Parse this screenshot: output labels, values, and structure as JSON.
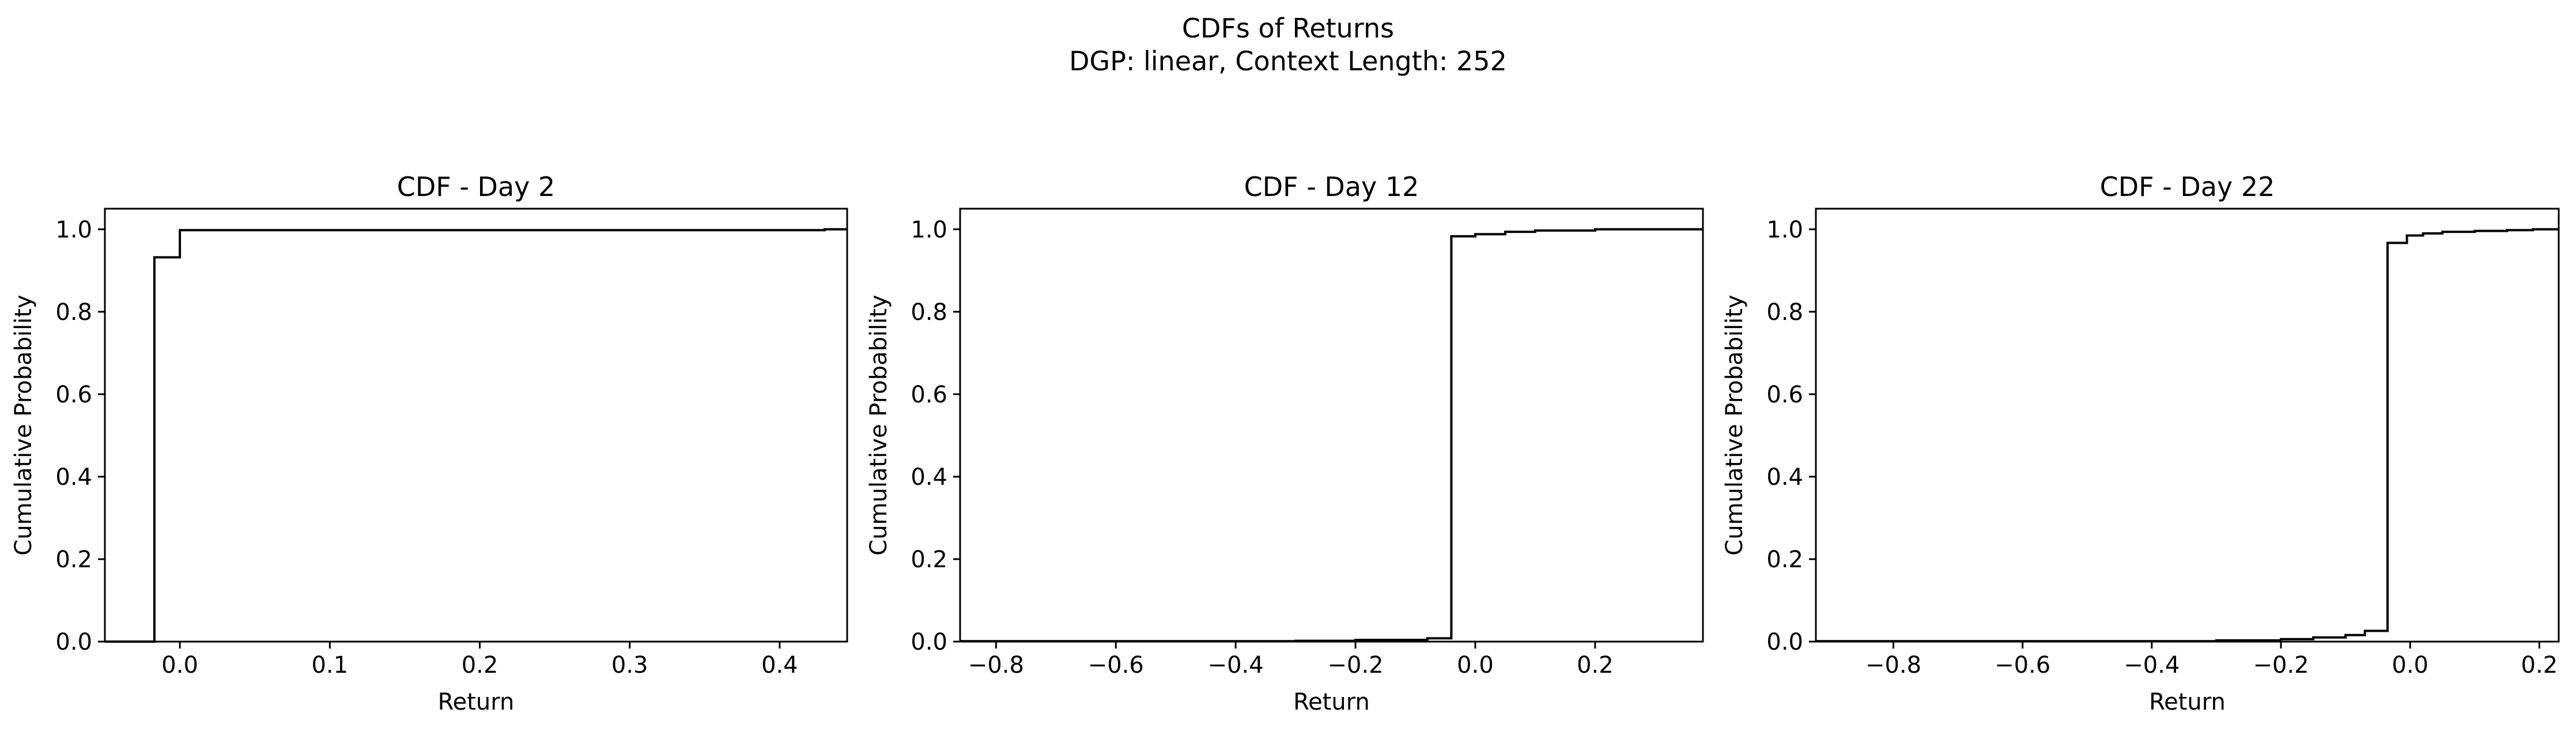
{
  "figure": {
    "title_line1": "CDFs of Returns",
    "title_line2": "DGP: linear, Context Length: 252"
  },
  "chart_data": [
    {
      "type": "line",
      "step": "post",
      "title": "CDF - Day 2",
      "xlabel": "Return",
      "ylabel": "Cumulative Probability",
      "xlim": [
        -0.05,
        0.445
      ],
      "ylim": [
        0.0,
        1.05
      ],
      "xticks": [
        0.0,
        0.1,
        0.2,
        0.3,
        0.4
      ],
      "xtick_labels": [
        "0.0",
        "0.1",
        "0.2",
        "0.3",
        "0.4"
      ],
      "yticks": [
        0.0,
        0.2,
        0.4,
        0.6,
        0.8,
        1.0
      ],
      "ytick_labels": [
        "0.0",
        "0.2",
        "0.4",
        "0.6",
        "0.8",
        "1.0"
      ],
      "grid": false,
      "series": [
        {
          "color": "#000000",
          "x": [
            -0.05,
            -0.017,
            -0.017,
            0.0,
            0.0,
            0.43,
            0.43,
            0.445
          ],
          "y": [
            0.0,
            0.0,
            0.932,
            0.932,
            0.998,
            0.998,
            1.0,
            1.0
          ]
        }
      ]
    },
    {
      "type": "line",
      "step": "post",
      "title": "CDF - Day 12",
      "xlabel": "Return",
      "ylabel": "Cumulative Probability",
      "xlim": [
        -0.86,
        0.38
      ],
      "ylim": [
        0.0,
        1.05
      ],
      "xticks": [
        -0.8,
        -0.6,
        -0.4,
        -0.2,
        0.0,
        0.2
      ],
      "xtick_labels": [
        "−0.8",
        "−0.6",
        "−0.4",
        "−0.2",
        "0.0",
        "0.2"
      ],
      "yticks": [
        0.0,
        0.2,
        0.4,
        0.6,
        0.8,
        1.0
      ],
      "ytick_labels": [
        "0.0",
        "0.2",
        "0.4",
        "0.6",
        "0.8",
        "1.0"
      ],
      "grid": false,
      "series": [
        {
          "color": "#000000",
          "x": [
            -0.86,
            -0.3,
            -0.3,
            -0.2,
            -0.2,
            -0.08,
            -0.08,
            -0.04,
            -0.04,
            0.0,
            0.0,
            0.05,
            0.05,
            0.1,
            0.1,
            0.2,
            0.2,
            0.38
          ],
          "y": [
            0.001,
            0.001,
            0.002,
            0.002,
            0.004,
            0.004,
            0.008,
            0.008,
            0.983,
            0.983,
            0.988,
            0.988,
            0.994,
            0.994,
            0.997,
            0.997,
            1.0,
            1.0
          ]
        }
      ]
    },
    {
      "type": "line",
      "step": "post",
      "title": "CDF - Day 22",
      "xlabel": "Return",
      "ylabel": "Cumulative Probability",
      "xlim": [
        -0.92,
        0.23
      ],
      "ylim": [
        0.0,
        1.05
      ],
      "xticks": [
        -0.8,
        -0.6,
        -0.4,
        -0.2,
        0.0,
        0.2
      ],
      "xtick_labels": [
        "−0.8",
        "−0.6",
        "−0.4",
        "−0.2",
        "0.0",
        "0.2"
      ],
      "yticks": [
        0.0,
        0.2,
        0.4,
        0.6,
        0.8,
        1.0
      ],
      "ytick_labels": [
        "0.0",
        "0.2",
        "0.4",
        "0.6",
        "0.8",
        "1.0"
      ],
      "grid": false,
      "series": [
        {
          "color": "#000000",
          "x": [
            -0.92,
            -0.3,
            -0.3,
            -0.2,
            -0.2,
            -0.15,
            -0.15,
            -0.1,
            -0.1,
            -0.07,
            -0.07,
            -0.035,
            -0.035,
            -0.005,
            -0.005,
            0.02,
            0.02,
            0.05,
            0.05,
            0.1,
            0.1,
            0.15,
            0.15,
            0.19,
            0.19,
            0.23
          ],
          "y": [
            0.001,
            0.001,
            0.003,
            0.003,
            0.006,
            0.006,
            0.01,
            0.01,
            0.016,
            0.016,
            0.026,
            0.026,
            0.967,
            0.967,
            0.985,
            0.985,
            0.99,
            0.99,
            0.994,
            0.994,
            0.996,
            0.996,
            0.998,
            0.998,
            1.0,
            1.0
          ]
        }
      ]
    }
  ]
}
